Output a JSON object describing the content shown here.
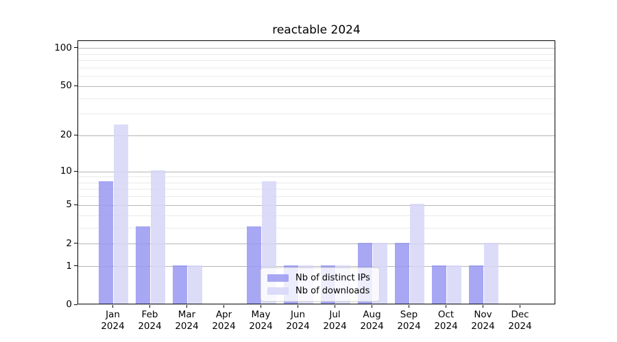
{
  "chart_data": {
    "type": "bar",
    "title": "reactable 2024",
    "categories": [
      "Jan",
      "Feb",
      "Mar",
      "Apr",
      "May",
      "Jun",
      "Jul",
      "Aug",
      "Sep",
      "Oct",
      "Nov",
      "Dec"
    ],
    "category_year": "2024",
    "series": [
      {
        "name": "Nb of distinct IPs",
        "color": "#9898f2",
        "values": [
          8,
          3,
          1,
          0,
          3,
          1,
          1,
          2,
          2,
          1,
          1,
          0
        ]
      },
      {
        "name": "Nb of downloads",
        "color": "#d6d6f8",
        "values": [
          24,
          10,
          1,
          0,
          8,
          1,
          1,
          2,
          5,
          1,
          2,
          0
        ]
      }
    ],
    "xlabel": "",
    "ylabel": "",
    "yscale": "log1p",
    "ylim": [
      0,
      112
    ],
    "yticks": [
      0,
      1,
      2,
      5,
      10,
      20,
      50,
      100
    ],
    "minor_gridlines": [
      3,
      4,
      6,
      7,
      8,
      9,
      30,
      40,
      60,
      70,
      80,
      90
    ],
    "grid": true,
    "legend_position": "lower center",
    "colors": {
      "frame": "#000000",
      "major_grid": "#b4b4b4",
      "minor_grid": "#e9e9e9",
      "background": "#ffffff"
    }
  }
}
